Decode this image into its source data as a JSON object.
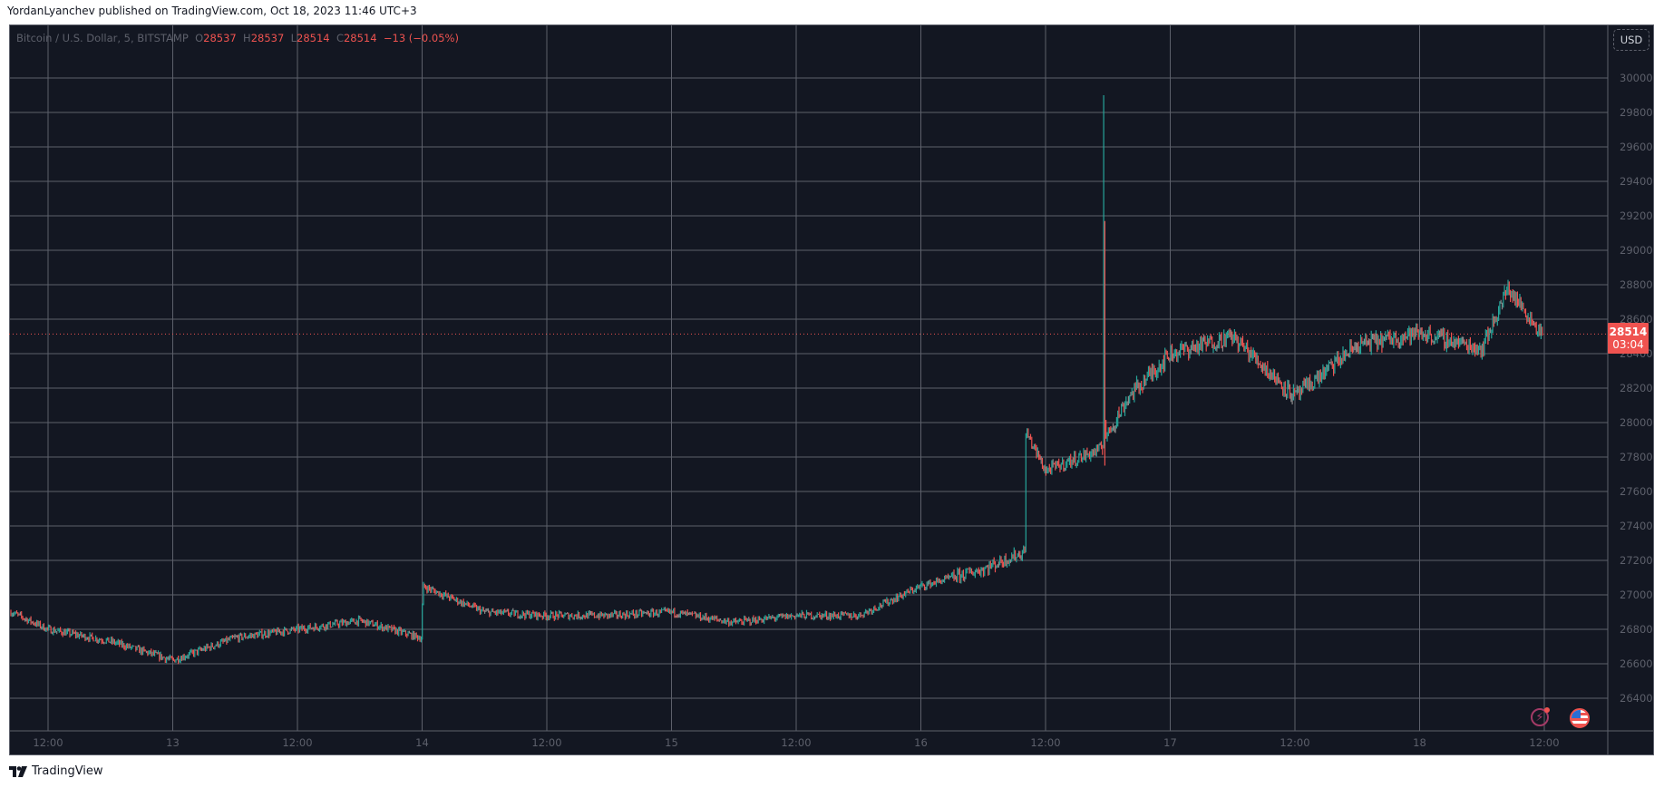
{
  "header": {
    "publisher_line": "YordanLyanchev published on TradingView.com, Oct 18, 2023 11:46 UTC+3"
  },
  "legend": {
    "symbol": "Bitcoin / U.S. Dollar, 5, BITSTAMP",
    "o_label": "O",
    "o_value": "28537",
    "h_label": "H",
    "h_value": "28537",
    "l_label": "L",
    "l_value": "28514",
    "c_label": "C",
    "c_value": "28514",
    "change": "−13 (−0.05%)"
  },
  "price_axis": {
    "currency_button": "USD",
    "ticks": [
      "30000",
      "29800",
      "29600",
      "29400",
      "29200",
      "29000",
      "28800",
      "28600",
      "28400",
      "28200",
      "28000",
      "27800",
      "27600",
      "27400",
      "27200",
      "27000",
      "26800",
      "26600",
      "26400"
    ],
    "last_price": "28514",
    "countdown": "03:04"
  },
  "time_axis": {
    "ticks": [
      "12:00",
      "13",
      "12:00",
      "14",
      "12:00",
      "15",
      "12:00",
      "16",
      "12:00",
      "17",
      "12:00",
      "18",
      "12:00"
    ]
  },
  "footer": {
    "brand": "TradingView"
  },
  "colors": {
    "background": "#131722",
    "grid": "#5d606b",
    "up": "#26a69a",
    "down": "#ef5350",
    "neutral": "#8a8a8a",
    "last_price": "#ef5350"
  },
  "chart_data": {
    "type": "candlestick",
    "title": "Bitcoin / U.S. Dollar, 5, BITSTAMP",
    "interval": "5 min",
    "xlabel": "",
    "ylabel": "USD",
    "ylim": [
      26300,
      30100
    ],
    "grid": true,
    "last": {
      "open": 28537,
      "high": 28537,
      "low": 28514,
      "close": 28514,
      "change": -13,
      "change_pct": -0.05
    },
    "x": [
      "Oct12 06:00",
      "Oct12 12:00",
      "Oct12 18:00",
      "Oct13 00:00",
      "Oct13 06:00",
      "Oct13 12:00",
      "Oct13 18:00",
      "Oct13 23:55",
      "Oct14 00:05",
      "Oct14 06:00",
      "Oct14 12:00",
      "Oct14 18:00",
      "Oct15 00:00",
      "Oct15 06:00",
      "Oct15 12:00",
      "Oct15 18:00",
      "Oct16 00:00",
      "Oct16 06:00",
      "Oct16 10:00",
      "Oct16 10:05",
      "Oct16 12:00",
      "Oct16 17:30",
      "Oct16 17:35",
      "Oct16 17:40",
      "Oct16 20:00",
      "Oct17 00:00",
      "Oct17 06:00",
      "Oct17 12:00",
      "Oct17 18:00",
      "Oct18 00:00",
      "Oct18 06:00",
      "Oct18 08:30",
      "Oct18 11:46"
    ],
    "close": [
      26900,
      26800,
      26730,
      26620,
      26750,
      26800,
      26850,
      26750,
      27050,
      26900,
      26880,
      26880,
      26900,
      26840,
      26880,
      26880,
      27050,
      27150,
      27250,
      27950,
      27720,
      27850,
      29200,
      27900,
      28150,
      28400,
      28500,
      28150,
      28450,
      28520,
      28430,
      28780,
      28514
    ],
    "notable": {
      "spike_high": 29900,
      "spike_time": "Oct16 ~17:35",
      "high_oct18": 28980
    }
  }
}
